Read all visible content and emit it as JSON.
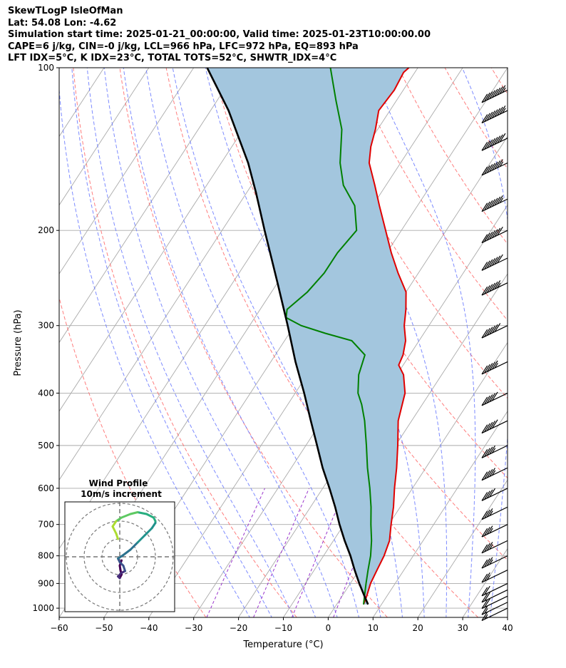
{
  "header": {
    "line1": "SkewTLogP IsleOfMan",
    "line2": "Lat: 54.08   Lon: -4.62",
    "line3": "Simulation start time: 2025-01-21_00:00:00, Valid time: 2025-01-23T10:00:00.00",
    "line4": "CAPE=6 j/kg, CIN=-0 j/kg, LCL=966 hPa, LFC=972 hPa, EQ=893 hPa",
    "line5": "LFT IDX=5°C, K IDX=23°C, TOTAL TOTS=52°C, SHWTR_IDX=4°C"
  },
  "axes": {
    "xlabel": "Temperature (°C)",
    "ylabel": "Pressure (hPa)",
    "xticks": [
      "−60",
      "−50",
      "−40",
      "−30",
      "−20",
      "−10",
      "0",
      "10",
      "20",
      "30",
      "40"
    ],
    "yticks": [
      "100",
      "200",
      "300",
      "400",
      "500",
      "600",
      "700",
      "800",
      "900",
      "1000"
    ]
  },
  "hodograph": {
    "title": "Wind Profile",
    "subtitle": "10m/s increment"
  },
  "colors": {
    "temperature": "#e00000",
    "dewpoint": "#008000",
    "parcel": "#000000",
    "cape_fill": "#a3c6de",
    "dry_adiabat": "#ff6666",
    "moist_adiabat": "#6677ff",
    "mixing_ratio": "#9933cc",
    "isotherm": "#aaaaaa"
  },
  "chart_data": {
    "type": "line",
    "skew": "skew-T log-p",
    "xlim": [
      -60,
      40
    ],
    "ylim": [
      1040,
      100
    ],
    "y_scale": "log",
    "grid": true,
    "series": [
      {
        "role": "temperature",
        "pressure": [
          984,
          950,
          900,
          850,
          800,
          750,
          700,
          650,
          600,
          550,
          500,
          450,
          400,
          370,
          355,
          340,
          320,
          300,
          280,
          260,
          240,
          220,
          200,
          180,
          165,
          150,
          140,
          130,
          120,
          110,
          102,
          100
        ],
        "temperature": [
          6.0,
          5.5,
          4.5,
          4.0,
          3.5,
          2.5,
          0.5,
          -1.5,
          -4.0,
          -6.5,
          -9.5,
          -13.0,
          -15.5,
          -18.5,
          -21.0,
          -21.5,
          -23.0,
          -25.5,
          -27.5,
          -30.0,
          -34.5,
          -39.0,
          -43.5,
          -48.5,
          -52.5,
          -57.0,
          -59.0,
          -60.5,
          -62.5,
          -62.0,
          -62.5,
          -62.0
        ]
      },
      {
        "role": "dewpoint",
        "pressure": [
          984,
          950,
          900,
          850,
          800,
          750,
          700,
          650,
          600,
          550,
          500,
          450,
          420,
          400,
          370,
          340,
          320,
          310,
          300,
          290,
          280,
          260,
          240,
          220,
          200,
          180,
          165,
          150,
          130,
          115,
          100
        ],
        "dewpoint": [
          6.0,
          5.0,
          3.5,
          2.0,
          0.5,
          -1.5,
          -4.0,
          -6.5,
          -9.5,
          -13.0,
          -16.5,
          -20.5,
          -23.5,
          -26.0,
          -28.5,
          -30.0,
          -35.0,
          -42.0,
          -48.5,
          -53.0,
          -54.0,
          -52.0,
          -51.0,
          -51.0,
          -50.0,
          -54.0,
          -59.5,
          -63.5,
          -68.0,
          -73.5,
          -79.5
        ]
      },
      {
        "role": "parcel",
        "pressure": [
          984,
          950,
          900,
          850,
          800,
          750,
          700,
          650,
          600,
          550,
          500,
          450,
          400,
          350,
          300,
          250,
          200,
          170,
          150,
          120,
          100
        ],
        "temperature": [
          7.0,
          5.0,
          2.0,
          -1.0,
          -4.0,
          -7.5,
          -11.0,
          -14.5,
          -18.5,
          -23.0,
          -27.5,
          -32.5,
          -38.0,
          -44.5,
          -51.5,
          -60.0,
          -70.5,
          -78.0,
          -84.0,
          -96.0,
          -107.0
        ]
      }
    ],
    "wind_barbs": {
      "pressure": [
        1000,
        975,
        950,
        925,
        900,
        850,
        800,
        750,
        700,
        650,
        600,
        550,
        500,
        450,
        400,
        350,
        300,
        250,
        225,
        200,
        175,
        150,
        135,
        120,
        110
      ],
      "speed_kt": [
        15,
        15,
        20,
        20,
        20,
        25,
        35,
        35,
        35,
        35,
        40,
        45,
        45,
        50,
        50,
        55,
        60,
        65,
        70,
        70,
        75,
        75,
        80,
        85,
        85
      ]
    },
    "hodograph": {
      "u": [
        1,
        0,
        0.5,
        1,
        0,
        -1,
        1,
        3,
        2,
        0,
        -1,
        2,
        6,
        10,
        14,
        18,
        20,
        20,
        19,
        15,
        10,
        6,
        1,
        -2,
        -4,
        -2,
        -1
      ],
      "v": [
        -2,
        -5,
        -8,
        -10,
        -12,
        -11,
        -9,
        -8,
        -5,
        -3,
        -1,
        1,
        4,
        8,
        12,
        16,
        19,
        20,
        22,
        24,
        25,
        24,
        22,
        20,
        17,
        13,
        10
      ],
      "rings_ms": [
        10,
        20,
        30
      ]
    }
  }
}
